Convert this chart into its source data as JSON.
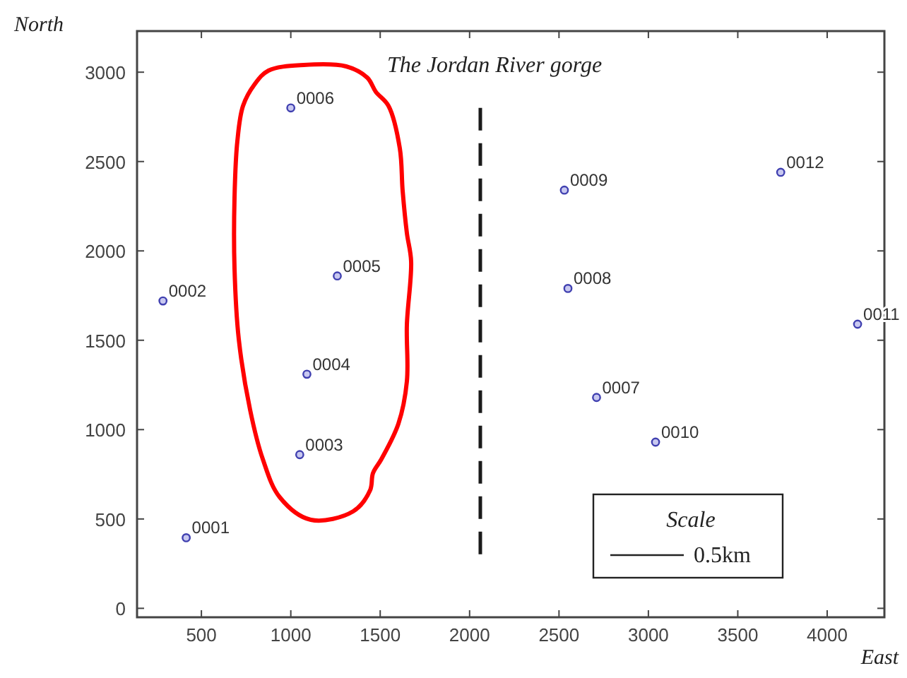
{
  "chart_data": {
    "type": "scatter",
    "xlabel": "East",
    "ylabel": "North",
    "xlim": [
      140,
      4320
    ],
    "ylim": [
      -50,
      3230
    ],
    "xticks": [
      500,
      1000,
      1500,
      2000,
      2500,
      3000,
      3500,
      4000
    ],
    "yticks": [
      0,
      500,
      1000,
      1500,
      2000,
      2500,
      3000
    ],
    "grid": false,
    "marker": "circle",
    "series": [
      {
        "color": "#4040b0",
        "x": [
          415,
          285,
          1050,
          1090,
          1260,
          1000,
          2710,
          2550,
          2530,
          3040,
          4170,
          3740
        ],
        "values": [
          395,
          1720,
          860,
          1310,
          1860,
          2800,
          1180,
          1790,
          2340,
          930,
          1590,
          2440
        ]
      },
      {
        "type": "line",
        "color": "#1a1a1a",
        "line_style": "dashed",
        "marker": "none",
        "x": [
          2060,
          2060
        ],
        "values": [
          2800,
          290
        ]
      }
    ],
    "annotations": [
      "The Jordan River gorge",
      "Scale",
      "0.5km",
      {
        "text": "0001",
        "x": 415,
        "y": 395
      },
      {
        "text": "0002",
        "x": 285,
        "y": 1720
      },
      {
        "text": "0003",
        "x": 1050,
        "y": 860
      },
      {
        "text": "0004",
        "x": 1090,
        "y": 1310
      },
      {
        "text": "0005",
        "x": 1260,
        "y": 1860
      },
      {
        "text": "0006",
        "x": 1000,
        "y": 2800
      },
      {
        "text": "0007",
        "x": 2710,
        "y": 1180
      },
      {
        "text": "0008",
        "x": 2550,
        "y": 1790
      },
      {
        "text": "0009",
        "x": 2530,
        "y": 2340
      },
      {
        "text": "0010",
        "x": 3040,
        "y": 930
      },
      {
        "text": "0011",
        "x": 4170,
        "y": 1590
      },
      {
        "text": "0012",
        "x": 3740,
        "y": 2440
      }
    ]
  }
}
